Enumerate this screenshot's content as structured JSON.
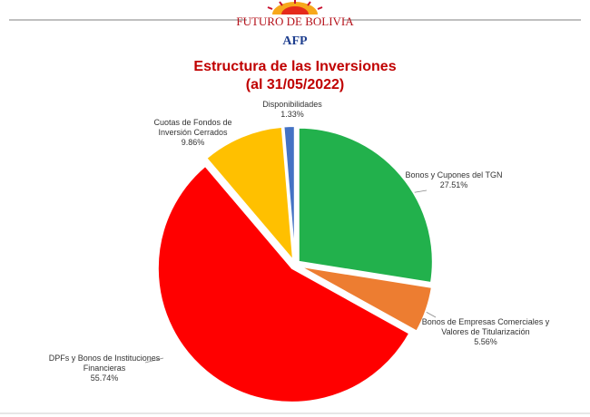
{
  "logo": {
    "name": "FUTURO DE BOLIVIA",
    "sub": "AFP"
  },
  "chart_data": {
    "type": "pie",
    "title": "Estructura de las Inversiones",
    "subtitle": "(al 31/05/2022)",
    "categories": [
      "Bonos y Cupones del TGN",
      "Bonos de Empresas Comerciales y Valores de Titularización",
      "DPFs y Bonos de Instituciones Financieras",
      "Cuotas de Fondos de Inversión Cerrados",
      "Disponibilidades"
    ],
    "values": [
      27.51,
      5.56,
      55.74,
      9.86,
      1.33
    ],
    "value_labels": [
      "27.51%",
      "5.56%",
      "55.74%",
      "9.86%",
      "1.33%"
    ],
    "colors": [
      "#22b14c",
      "#ed7d31",
      "#ff0000",
      "#ffc000",
      "#4472c4"
    ]
  }
}
